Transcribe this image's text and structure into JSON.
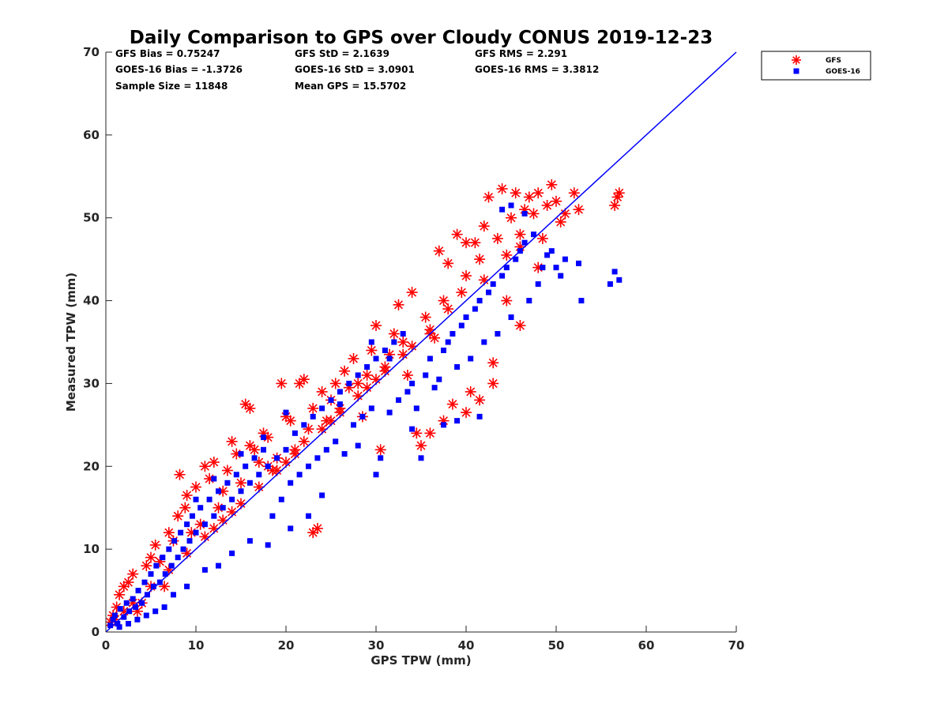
{
  "chart_data": {
    "type": "scatter",
    "title": "Daily Comparison to GPS over Cloudy CONUS 2019-12-23",
    "xlabel": "GPS TPW (mm)",
    "ylabel": "Measured TPW (mm)",
    "xlim": [
      0,
      70
    ],
    "ylim": [
      0,
      70
    ],
    "xticks": [
      0,
      10,
      20,
      30,
      40,
      50,
      60,
      70
    ],
    "yticks": [
      0,
      10,
      20,
      30,
      40,
      50,
      60,
      70
    ],
    "grid": false,
    "legend_position": "outside-top-right",
    "reference_line": {
      "name": "1:1 line",
      "x": [
        0,
        70
      ],
      "y": [
        0,
        70
      ],
      "color": "#0000ff"
    },
    "stats": [
      "GFS Bias = 0.75247",
      "GFS StD = 2.1639",
      "GFS RMS = 2.291",
      "GOES-16 Bias = -1.3726",
      "GOES-16 StD = 3.0901",
      "GOES-16 RMS = 3.3812",
      "Sample Size = 11848",
      "Mean GPS = 15.5702"
    ],
    "series": [
      {
        "name": "GFS",
        "marker": "asterisk",
        "color": "#ff0000",
        "points": [
          [
            0.5,
            1.2
          ],
          [
            0.8,
            2.0
          ],
          [
            1.2,
            3.0
          ],
          [
            1.5,
            4.5
          ],
          [
            2.0,
            5.5
          ],
          [
            2.5,
            6.0
          ],
          [
            3.0,
            7.0
          ],
          [
            3.5,
            2.5
          ],
          [
            4.0,
            3.5
          ],
          [
            4.5,
            8.0
          ],
          [
            5.0,
            9.0
          ],
          [
            5.5,
            10.5
          ],
          [
            6.0,
            8.5
          ],
          [
            6.5,
            5.5
          ],
          [
            7.0,
            12.0
          ],
          [
            7.5,
            11.0
          ],
          [
            8.0,
            14.0
          ],
          [
            8.2,
            19.0
          ],
          [
            8.8,
            15.0
          ],
          [
            9.0,
            16.5
          ],
          [
            9.5,
            12.0
          ],
          [
            10.0,
            17.5
          ],
          [
            10.5,
            13.0
          ],
          [
            11.0,
            20.0
          ],
          [
            11.5,
            18.5
          ],
          [
            12.0,
            20.5
          ],
          [
            12.5,
            15.0
          ],
          [
            13.0,
            17.0
          ],
          [
            13.5,
            19.5
          ],
          [
            14.0,
            23.0
          ],
          [
            14.5,
            21.5
          ],
          [
            15.0,
            18.0
          ],
          [
            15.5,
            27.5
          ],
          [
            16.0,
            27.0
          ],
          [
            16.5,
            22.0
          ],
          [
            17.0,
            20.5
          ],
          [
            17.5,
            24.0
          ],
          [
            18.0,
            23.5
          ],
          [
            18.5,
            19.5
          ],
          [
            19.0,
            21.0
          ],
          [
            19.5,
            30.0
          ],
          [
            20.0,
            26.0
          ],
          [
            20.5,
            25.5
          ],
          [
            21.0,
            22.0
          ],
          [
            21.5,
            30.0
          ],
          [
            22.0,
            30.5
          ],
          [
            22.5,
            24.5
          ],
          [
            23.0,
            27.0
          ],
          [
            23.5,
            12.5
          ],
          [
            24.0,
            29.0
          ],
          [
            24.5,
            25.5
          ],
          [
            25.0,
            28.0
          ],
          [
            25.5,
            30.0
          ],
          [
            26.0,
            27.0
          ],
          [
            26.5,
            31.5
          ],
          [
            27.0,
            29.5
          ],
          [
            27.5,
            33.0
          ],
          [
            28.0,
            30.0
          ],
          [
            28.5,
            26.0
          ],
          [
            29.0,
            31.0
          ],
          [
            29.5,
            34.0
          ],
          [
            30.0,
            37.0
          ],
          [
            30.5,
            22.0
          ],
          [
            31.0,
            32.0
          ],
          [
            31.5,
            33.5
          ],
          [
            32.0,
            36.0
          ],
          [
            32.5,
            39.5
          ],
          [
            33.0,
            35.0
          ],
          [
            33.5,
            31.0
          ],
          [
            34.0,
            41.0
          ],
          [
            34.5,
            24.0
          ],
          [
            35.0,
            22.5
          ],
          [
            35.5,
            38.0
          ],
          [
            36.0,
            36.0
          ],
          [
            36.5,
            35.5
          ],
          [
            37.0,
            46.0
          ],
          [
            37.5,
            40.0
          ],
          [
            38.0,
            44.5
          ],
          [
            38.5,
            27.5
          ],
          [
            39.0,
            48.0
          ],
          [
            39.5,
            41.0
          ],
          [
            40.0,
            43.0
          ],
          [
            40.5,
            29.0
          ],
          [
            41.0,
            47.0
          ],
          [
            41.5,
            45.0
          ],
          [
            42.0,
            49.0
          ],
          [
            42.5,
            52.5
          ],
          [
            43.0,
            32.5
          ],
          [
            43.5,
            47.5
          ],
          [
            44.0,
            53.5
          ],
          [
            44.5,
            45.5
          ],
          [
            45.0,
            50.0
          ],
          [
            45.5,
            53.0
          ],
          [
            46.0,
            48.0
          ],
          [
            46.5,
            51.0
          ],
          [
            47.0,
            52.5
          ],
          [
            47.5,
            50.5
          ],
          [
            48.0,
            53.0
          ],
          [
            48.5,
            47.5
          ],
          [
            49.0,
            51.5
          ],
          [
            49.5,
            54.0
          ],
          [
            50.0,
            52.0
          ],
          [
            50.5,
            49.5
          ],
          [
            51.0,
            50.5
          ],
          [
            52.0,
            53.0
          ],
          [
            52.5,
            51.0
          ],
          [
            56.5,
            51.5
          ],
          [
            56.8,
            52.5
          ],
          [
            57.0,
            53.0
          ],
          [
            40.0,
            47.0
          ],
          [
            16.0,
            22.5
          ],
          [
            18.0,
            20.0
          ],
          [
            22.0,
            23.0
          ],
          [
            25.0,
            25.5
          ],
          [
            28.0,
            28.5
          ],
          [
            30.0,
            30.5
          ],
          [
            34.0,
            34.5
          ],
          [
            38.0,
            39.0
          ],
          [
            42.0,
            42.5
          ],
          [
            46.0,
            46.5
          ],
          [
            12.0,
            12.5
          ],
          [
            14.0,
            14.5
          ],
          [
            20.0,
            20.5
          ],
          [
            24.0,
            24.5
          ],
          [
            33.0,
            33.5
          ],
          [
            36.0,
            36.5
          ],
          [
            3.0,
            3.5
          ],
          [
            5.0,
            5.5
          ],
          [
            7.0,
            7.5
          ],
          [
            9.0,
            9.5
          ],
          [
            11.0,
            11.5
          ],
          [
            13.0,
            13.5
          ],
          [
            15.0,
            15.5
          ],
          [
            17.0,
            17.5
          ],
          [
            19.0,
            19.5
          ],
          [
            21.0,
            21.5
          ],
          [
            26.0,
            26.5
          ],
          [
            29.0,
            29.5
          ],
          [
            31.0,
            31.5
          ],
          [
            43.0,
            30.0
          ],
          [
            41.5,
            28.0
          ],
          [
            40.0,
            26.5
          ],
          [
            23.0,
            12.0
          ],
          [
            36.0,
            24.0
          ],
          [
            37.5,
            25.5
          ],
          [
            44.5,
            40.0
          ],
          [
            46.0,
            37.0
          ],
          [
            48.0,
            44.0
          ],
          [
            2.0,
            2.5
          ],
          [
            1.0,
            1.5
          ]
        ]
      },
      {
        "name": "GOES-16",
        "marker": "square",
        "color": "#0000ff",
        "points": [
          [
            0.5,
            0.8
          ],
          [
            0.8,
            1.5
          ],
          [
            1.0,
            2.0
          ],
          [
            1.3,
            1.0
          ],
          [
            1.6,
            2.8
          ],
          [
            2.0,
            1.8
          ],
          [
            2.3,
            3.5
          ],
          [
            2.6,
            2.5
          ],
          [
            3.0,
            4.0
          ],
          [
            3.3,
            3.0
          ],
          [
            3.6,
            5.0
          ],
          [
            4.0,
            3.5
          ],
          [
            4.3,
            6.0
          ],
          [
            4.6,
            4.5
          ],
          [
            5.0,
            7.0
          ],
          [
            5.3,
            5.5
          ],
          [
            5.6,
            8.0
          ],
          [
            6.0,
            6.0
          ],
          [
            6.3,
            9.0
          ],
          [
            6.6,
            7.0
          ],
          [
            7.0,
            10.0
          ],
          [
            7.3,
            8.0
          ],
          [
            7.6,
            11.0
          ],
          [
            8.0,
            9.0
          ],
          [
            8.3,
            12.0
          ],
          [
            8.6,
            10.0
          ],
          [
            9.0,
            13.0
          ],
          [
            9.3,
            11.0
          ],
          [
            9.6,
            14.0
          ],
          [
            10.0,
            12.0
          ],
          [
            10.5,
            15.0
          ],
          [
            11.0,
            13.0
          ],
          [
            11.5,
            16.0
          ],
          [
            12.0,
            14.0
          ],
          [
            12.5,
            17.0
          ],
          [
            13.0,
            15.0
          ],
          [
            13.5,
            18.0
          ],
          [
            14.0,
            16.0
          ],
          [
            14.5,
            19.0
          ],
          [
            15.0,
            17.0
          ],
          [
            15.5,
            20.0
          ],
          [
            16.0,
            18.0
          ],
          [
            16.5,
            21.0
          ],
          [
            17.0,
            19.0
          ],
          [
            17.5,
            22.0
          ],
          [
            18.0,
            20.0
          ],
          [
            18.5,
            14.0
          ],
          [
            19.0,
            21.0
          ],
          [
            19.5,
            16.0
          ],
          [
            20.0,
            22.0
          ],
          [
            20.5,
            18.0
          ],
          [
            21.0,
            24.0
          ],
          [
            21.5,
            19.0
          ],
          [
            22.0,
            25.0
          ],
          [
            22.5,
            20.0
          ],
          [
            23.0,
            26.0
          ],
          [
            23.5,
            21.0
          ],
          [
            24.0,
            27.0
          ],
          [
            24.5,
            22.0
          ],
          [
            25.0,
            28.0
          ],
          [
            25.5,
            23.0
          ],
          [
            26.0,
            29.0
          ],
          [
            26.5,
            21.5
          ],
          [
            27.0,
            30.0
          ],
          [
            27.5,
            25.0
          ],
          [
            28.0,
            31.0
          ],
          [
            28.5,
            26.0
          ],
          [
            29.0,
            32.0
          ],
          [
            29.5,
            27.0
          ],
          [
            30.0,
            33.0
          ],
          [
            30.5,
            21.0
          ],
          [
            31.0,
            34.0
          ],
          [
            31.5,
            26.5
          ],
          [
            32.0,
            35.0
          ],
          [
            32.5,
            28.0
          ],
          [
            33.0,
            36.0
          ],
          [
            33.5,
            29.0
          ],
          [
            34.0,
            30.0
          ],
          [
            34.5,
            27.0
          ],
          [
            35.0,
            21.0
          ],
          [
            35.5,
            31.0
          ],
          [
            36.0,
            33.0
          ],
          [
            36.5,
            29.5
          ],
          [
            37.0,
            30.5
          ],
          [
            37.5,
            34.0
          ],
          [
            38.0,
            35.0
          ],
          [
            38.5,
            36.0
          ],
          [
            39.0,
            32.0
          ],
          [
            39.5,
            37.0
          ],
          [
            40.0,
            38.0
          ],
          [
            40.5,
            33.0
          ],
          [
            41.0,
            39.0
          ],
          [
            41.5,
            40.0
          ],
          [
            42.0,
            35.0
          ],
          [
            42.5,
            41.0
          ],
          [
            43.0,
            42.0
          ],
          [
            43.5,
            36.0
          ],
          [
            44.0,
            43.0
          ],
          [
            44.5,
            44.0
          ],
          [
            45.0,
            38.0
          ],
          [
            45.5,
            45.0
          ],
          [
            46.0,
            46.0
          ],
          [
            46.5,
            47.0
          ],
          [
            47.0,
            40.0
          ],
          [
            47.5,
            48.0
          ],
          [
            48.0,
            42.0
          ],
          [
            48.5,
            44.0
          ],
          [
            49.0,
            45.5
          ],
          [
            49.5,
            46.0
          ],
          [
            50.0,
            44.0
          ],
          [
            50.5,
            43.0
          ],
          [
            51.0,
            45.0
          ],
          [
            52.5,
            44.5
          ],
          [
            52.8,
            40.0
          ],
          [
            56.0,
            42.0
          ],
          [
            56.5,
            43.5
          ],
          [
            57.0,
            42.5
          ],
          [
            44.0,
            51.0
          ],
          [
            45.0,
            51.5
          ],
          [
            46.5,
            50.5
          ],
          [
            26.0,
            27.5
          ],
          [
            29.5,
            35.0
          ],
          [
            31.5,
            33.0
          ],
          [
            34.0,
            24.5
          ],
          [
            37.5,
            25.0
          ],
          [
            39.0,
            25.5
          ],
          [
            41.5,
            26.0
          ],
          [
            30.0,
            19.0
          ],
          [
            28.0,
            22.5
          ],
          [
            22.5,
            14.0
          ],
          [
            24.0,
            16.5
          ],
          [
            18.0,
            10.5
          ],
          [
            20.5,
            12.5
          ],
          [
            16.0,
            11.0
          ],
          [
            14.0,
            9.5
          ],
          [
            12.5,
            8.0
          ],
          [
            11.0,
            7.5
          ],
          [
            9.0,
            5.5
          ],
          [
            7.5,
            4.5
          ],
          [
            6.5,
            3.0
          ],
          [
            5.5,
            2.5
          ],
          [
            4.5,
            2.0
          ],
          [
            3.5,
            1.5
          ],
          [
            2.5,
            1.0
          ],
          [
            1.5,
            0.6
          ],
          [
            10.0,
            16.0
          ],
          [
            12.0,
            18.5
          ],
          [
            15.0,
            21.5
          ],
          [
            17.5,
            23.5
          ],
          [
            20.0,
            26.5
          ]
        ]
      }
    ]
  }
}
